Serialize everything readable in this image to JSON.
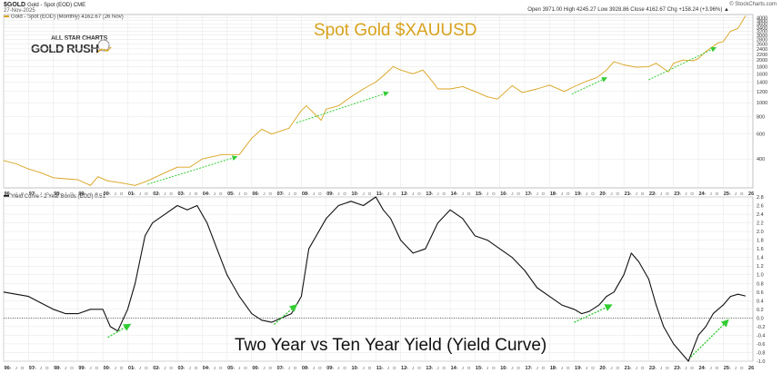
{
  "header": {
    "symbol": "$GOLD",
    "symbol_sub": "Gold - Spot (EOD) CME",
    "date": "27-Nov-2025",
    "ohlc": "Open 3971.00  High 4245.27  Low 3928.86  Close 4162.67  Chg +158.24 (+3.96%) ▲",
    "credit": "© StockCharts.com"
  },
  "logo": {
    "line1": "ALL STAR CHARTS",
    "line2": "GOLD RUSH"
  },
  "colors": {
    "gold": "#d9a21c",
    "yield": "#111111",
    "trend": "#33cc33",
    "grid": "#e4e4e4"
  },
  "chart_data": [
    {
      "type": "line",
      "title": "Spot Gold $XAUUSD",
      "legend": "Gold - Spot (EOD) (Monthly) 4162.67 (26 Nov)",
      "yscale": "log",
      "ylim": [
        250,
        4200
      ],
      "yticks": [
        400,
        600,
        800,
        1000,
        1200,
        1400,
        1600,
        1800,
        2000,
        2200,
        2400,
        2600,
        2800,
        3000,
        3200,
        3400,
        3600,
        3800,
        4000
      ],
      "x_range": [
        1996,
        2026.2
      ],
      "series": [
        {
          "x": [
            1996.0,
            1996.5,
            1997.0,
            1997.5,
            1998.0,
            1998.5,
            1999.0,
            1999.5,
            1999.8,
            2000.2,
            2000.8,
            2001.3,
            2001.8,
            2002.5,
            2003.0,
            2003.5,
            2004.0,
            2004.8,
            2005.5,
            2006.0,
            2006.4,
            2006.8,
            2007.5,
            2008.0,
            2008.2,
            2008.8,
            2009.0,
            2009.5,
            2010.0,
            2010.5,
            2011.0,
            2011.3,
            2011.7,
            2012.0,
            2012.5,
            2012.9,
            2013.3,
            2013.5,
            2014.0,
            2014.5,
            2015.0,
            2015.5,
            2015.9,
            2016.5,
            2016.9,
            2017.5,
            2018.0,
            2018.6,
            2019.0,
            2019.5,
            2019.9,
            2020.3,
            2020.6,
            2021.0,
            2021.5,
            2022.0,
            2022.3,
            2022.8,
            2023.0,
            2023.4,
            2023.8,
            2024.0,
            2024.3,
            2024.8,
            2025.0,
            2025.3,
            2025.6,
            2025.9
          ],
          "y": [
            390,
            370,
            340,
            320,
            295,
            290,
            285,
            260,
            300,
            280,
            270,
            260,
            280,
            320,
            350,
            350,
            400,
            430,
            430,
            560,
            650,
            600,
            660,
            880,
            950,
            750,
            900,
            950,
            1100,
            1250,
            1400,
            1550,
            1800,
            1700,
            1600,
            1700,
            1400,
            1250,
            1250,
            1300,
            1200,
            1100,
            1060,
            1320,
            1180,
            1250,
            1330,
            1200,
            1300,
            1420,
            1500,
            1700,
            1950,
            1850,
            1780,
            1800,
            1900,
            1650,
            1900,
            2000,
            1980,
            2050,
            2300,
            2650,
            2700,
            3200,
            3350,
            4100
          ]
        }
      ],
      "trendlines": [
        {
          "x": [
            2001.8,
            2005.4
          ],
          "y": [
            265,
            415
          ]
        },
        {
          "x": [
            2007.8,
            2011.5
          ],
          "y": [
            720,
            1180
          ]
        },
        {
          "x": [
            2018.9,
            2020.3
          ],
          "y": [
            1150,
            1500
          ]
        },
        {
          "x": [
            2022.0,
            2024.7
          ],
          "y": [
            1450,
            2450
          ]
        }
      ]
    },
    {
      "type": "line",
      "title": "Two Year vs Ten Year Yield (Yield Curve)",
      "legend": "Yield Curve - 2 Year Bonds (EOD) 0.51",
      "ylim": [
        -1.0,
        2.8
      ],
      "yticks": [
        -1.0,
        -0.8,
        -0.6,
        -0.4,
        -0.2,
        0.0,
        0.2,
        0.4,
        0.6,
        0.8,
        1.0,
        1.2,
        1.4,
        1.6,
        1.8,
        2.0,
        2.2,
        2.4,
        2.6,
        2.8
      ],
      "zero_line": 0.0,
      "x_range": [
        1996,
        2026.2
      ],
      "series": [
        {
          "x": [
            1996.0,
            1996.5,
            1997.0,
            1997.5,
            1998.0,
            1998.5,
            1999.0,
            1999.5,
            2000.0,
            2000.3,
            2000.6,
            2001.0,
            2001.3,
            2001.7,
            2002.0,
            2002.5,
            2003.0,
            2003.4,
            2003.8,
            2004.2,
            2004.6,
            2005.0,
            2005.5,
            2006.0,
            2006.4,
            2006.8,
            2007.2,
            2007.6,
            2008.0,
            2008.3,
            2008.6,
            2009.0,
            2009.5,
            2010.0,
            2010.5,
            2011.0,
            2011.3,
            2011.6,
            2012.0,
            2012.5,
            2013.0,
            2013.5,
            2014.0,
            2014.5,
            2015.0,
            2015.5,
            2016.0,
            2016.5,
            2017.0,
            2017.5,
            2018.0,
            2018.5,
            2019.0,
            2019.3,
            2019.6,
            2020.0,
            2020.3,
            2020.6,
            2021.0,
            2021.3,
            2021.6,
            2022.0,
            2022.3,
            2022.6,
            2023.0,
            2023.3,
            2023.6,
            2024.0,
            2024.3,
            2024.6,
            2025.0,
            2025.3,
            2025.6,
            2025.9
          ],
          "y": [
            0.6,
            0.55,
            0.5,
            0.35,
            0.2,
            0.1,
            0.1,
            0.2,
            0.2,
            -0.2,
            -0.3,
            0.2,
            0.8,
            1.9,
            2.2,
            2.4,
            2.6,
            2.5,
            2.6,
            2.2,
            1.6,
            1.0,
            0.5,
            0.1,
            -0.05,
            -0.1,
            0.0,
            0.1,
            0.5,
            1.6,
            1.9,
            2.3,
            2.6,
            2.7,
            2.6,
            2.8,
            2.5,
            2.3,
            1.8,
            1.5,
            1.6,
            2.2,
            2.5,
            2.3,
            1.9,
            1.8,
            1.6,
            1.4,
            1.1,
            0.7,
            0.5,
            0.3,
            0.2,
            0.1,
            0.15,
            0.3,
            0.5,
            0.6,
            1.0,
            1.5,
            1.3,
            0.9,
            0.3,
            -0.2,
            -0.6,
            -0.8,
            -1.0,
            -0.4,
            -0.2,
            0.1,
            0.3,
            0.5,
            0.55,
            0.51
          ]
        }
      ],
      "trendlines": [
        {
          "x": [
            2000.2,
            2001.1
          ],
          "y": [
            -0.45,
            -0.15
          ]
        },
        {
          "x": [
            2006.9,
            2007.8
          ],
          "y": [
            -0.15,
            0.3
          ]
        },
        {
          "x": [
            2019.0,
            2020.5
          ],
          "y": [
            -0.1,
            0.3
          ]
        },
        {
          "x": [
            2023.7,
            2025.2
          ],
          "y": [
            -0.9,
            -0.05
          ]
        }
      ]
    }
  ],
  "x_axis": {
    "years": [
      "96",
      "97",
      "98",
      "99",
      "00",
      "01",
      "02",
      "03",
      "04",
      "05",
      "06",
      "07",
      "08",
      "09",
      "10",
      "11",
      "12",
      "13",
      "14",
      "15",
      "16",
      "17",
      "18",
      "19",
      "20",
      "21",
      "22",
      "23",
      "24",
      "25",
      "26"
    ],
    "quarters": [
      "A",
      "J",
      "O"
    ]
  }
}
